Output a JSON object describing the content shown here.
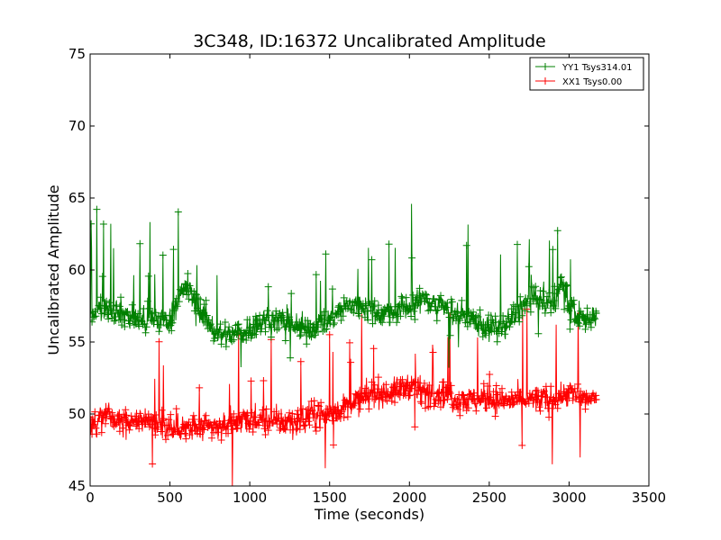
{
  "chart_data": {
    "type": "line",
    "title": "3C348, ID:16372 Uncalibrated Amplitude",
    "xlabel": "Time (seconds)",
    "ylabel": "Uncalibrated Amplitude",
    "xlim": [
      0,
      3500
    ],
    "ylim": [
      45,
      75
    ],
    "xticks": [
      "0",
      "500",
      "1000",
      "1500",
      "2000",
      "2500",
      "3000",
      "3500"
    ],
    "yticks": [
      "45",
      "50",
      "55",
      "60",
      "65",
      "70",
      "75"
    ],
    "grid": false,
    "legend_position": "top-right",
    "marker": "+",
    "series": [
      {
        "name": "YY1 Tsys314.01",
        "color": "#008000",
        "x": [
          0,
          100,
          200,
          300,
          400,
          500,
          600,
          700,
          800,
          900,
          1000,
          1100,
          1200,
          1300,
          1400,
          1500,
          1600,
          1700,
          1800,
          1900,
          2000,
          2100,
          2200,
          2300,
          2400,
          2500,
          2600,
          2700,
          2800,
          2900,
          2950,
          3000,
          3100,
          3170
        ],
        "values": [
          57.0,
          57.5,
          57.0,
          56.5,
          56.5,
          56.5,
          59.0,
          57.0,
          55.5,
          55.5,
          56.0,
          56.5,
          56.5,
          56.0,
          56.0,
          56.5,
          57.5,
          57.5,
          57.0,
          57.0,
          57.5,
          58.0,
          57.5,
          57.0,
          56.5,
          56.0,
          56.0,
          57.5,
          58.0,
          57.5,
          59.0,
          57.5,
          56.5,
          57.0
        ]
      },
      {
        "name": "XX1 Tsys0.00",
        "color": "#ff0000",
        "x": [
          0,
          100,
          200,
          300,
          400,
          500,
          600,
          700,
          800,
          900,
          1000,
          1100,
          1200,
          1300,
          1400,
          1500,
          1600,
          1700,
          1800,
          1900,
          2000,
          2100,
          2200,
          2300,
          2400,
          2500,
          2600,
          2700,
          2800,
          2900,
          3000,
          3100,
          3170
        ],
        "values": [
          49.0,
          50.0,
          49.5,
          49.5,
          49.5,
          49.0,
          49.0,
          49.0,
          49.0,
          49.5,
          49.5,
          49.5,
          49.5,
          49.5,
          50.0,
          50.0,
          50.5,
          51.0,
          51.5,
          51.5,
          52.0,
          51.5,
          51.5,
          51.0,
          51.0,
          51.0,
          51.0,
          51.0,
          51.0,
          51.0,
          51.5,
          51.0,
          51.0
        ]
      }
    ]
  }
}
